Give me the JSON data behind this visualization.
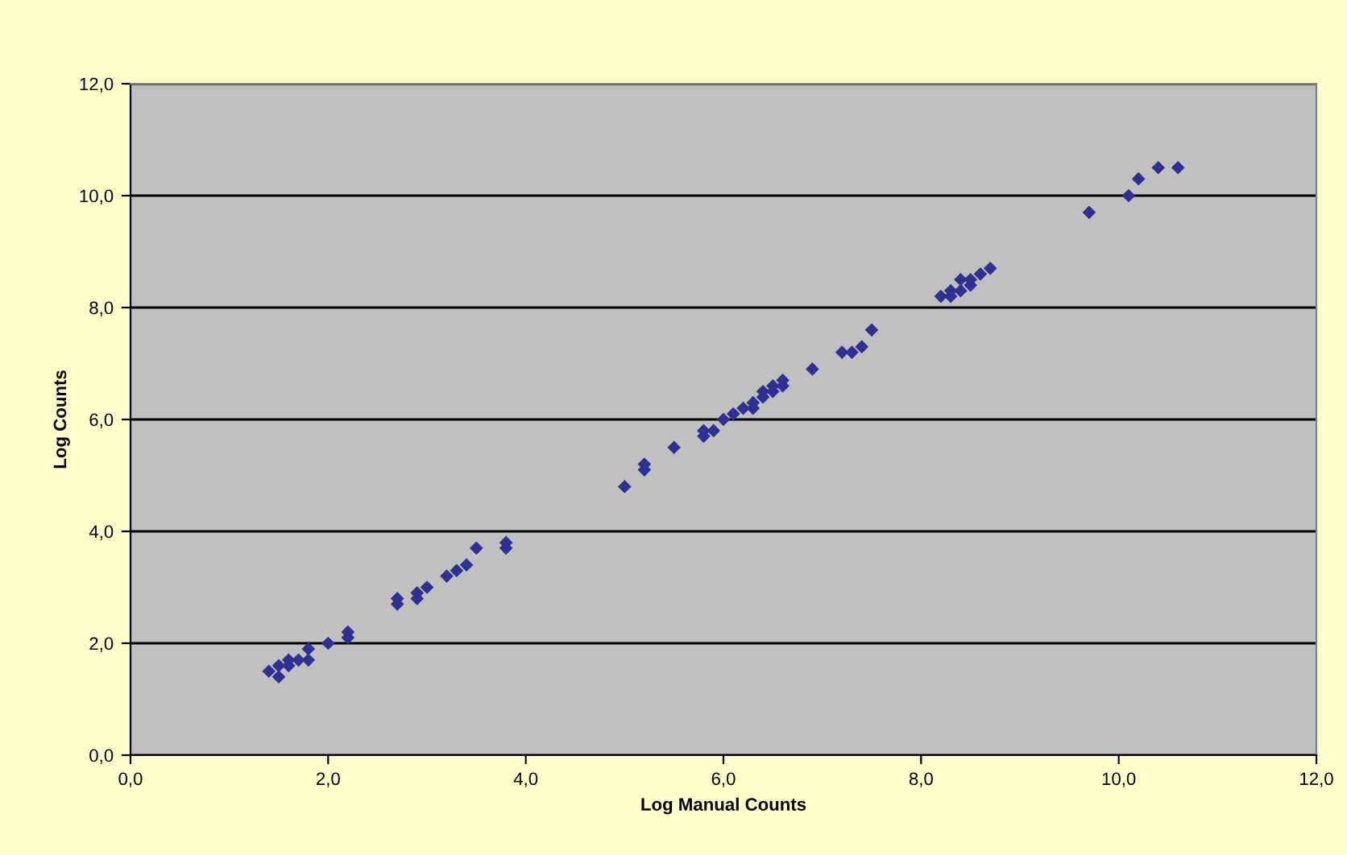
{
  "chart_data": {
    "type": "scatter",
    "xlabel": "Log Manual Counts",
    "ylabel": "Log Counts",
    "x": [
      1.4,
      1.5,
      1.5,
      1.6,
      1.6,
      1.7,
      1.8,
      1.8,
      2.0,
      2.2,
      2.2,
      2.7,
      2.7,
      2.9,
      2.9,
      3.0,
      3.2,
      3.3,
      3.4,
      3.5,
      3.8,
      3.8,
      5.0,
      5.2,
      5.2,
      5.5,
      5.8,
      5.8,
      5.9,
      6.0,
      6.1,
      6.2,
      6.3,
      6.3,
      6.4,
      6.4,
      6.5,
      6.5,
      6.6,
      6.6,
      6.9,
      7.2,
      7.3,
      7.4,
      7.5,
      8.2,
      8.3,
      8.3,
      8.4,
      8.4,
      8.5,
      8.5,
      8.6,
      8.7,
      9.7,
      10.1,
      10.2,
      10.4,
      10.6
    ],
    "series": [
      {
        "color": "#2e3192",
        "values": [
          1.5,
          1.4,
          1.6,
          1.7,
          1.6,
          1.7,
          1.7,
          1.9,
          2.0,
          2.1,
          2.2,
          2.7,
          2.8,
          2.8,
          2.9,
          3.0,
          3.2,
          3.3,
          3.4,
          3.7,
          3.7,
          3.8,
          4.8,
          5.1,
          5.2,
          5.5,
          5.7,
          5.8,
          5.8,
          6.0,
          6.1,
          6.2,
          6.2,
          6.3,
          6.4,
          6.5,
          6.6,
          6.5,
          6.6,
          6.7,
          6.9,
          7.2,
          7.2,
          7.3,
          7.6,
          8.2,
          8.2,
          8.3,
          8.3,
          8.5,
          8.5,
          8.4,
          8.6,
          8.7,
          9.7,
          10.0,
          10.3,
          10.5,
          10.5
        ]
      }
    ],
    "xlim": [
      0,
      12
    ],
    "ylim": [
      0,
      12
    ],
    "xticks": [
      {
        "value": 0,
        "label": "0,0"
      },
      {
        "value": 2,
        "label": "2,0"
      },
      {
        "value": 4,
        "label": "4,0"
      },
      {
        "value": 6,
        "label": "6,0"
      },
      {
        "value": 8,
        "label": "8,0"
      },
      {
        "value": 10,
        "label": "10,0"
      },
      {
        "value": 12,
        "label": "12,0"
      }
    ],
    "yticks": [
      {
        "value": 0,
        "label": "0,0"
      },
      {
        "value": 2,
        "label": "2,0"
      },
      {
        "value": 4,
        "label": "4,0"
      },
      {
        "value": 6,
        "label": "6,0"
      },
      {
        "value": 8,
        "label": "8,0"
      },
      {
        "value": 10,
        "label": "10,0"
      },
      {
        "value": 12,
        "label": "12,0"
      }
    ],
    "grid": "y",
    "marker": "diamond"
  }
}
